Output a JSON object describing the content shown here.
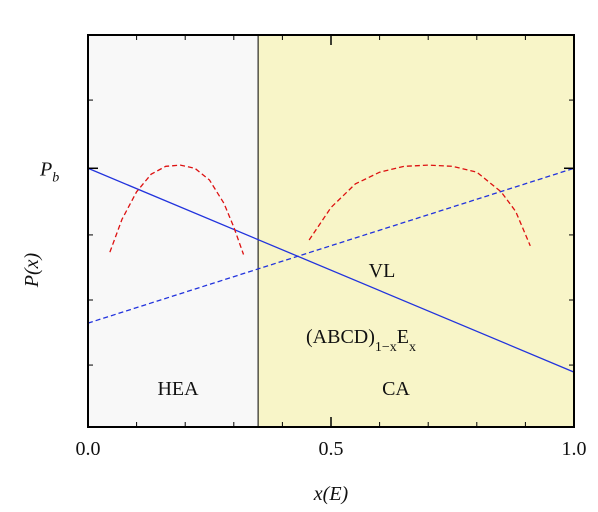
{
  "chart_data": {
    "type": "line",
    "x_label": "x(E)",
    "y_label": "P(x)",
    "xlim": [
      0,
      1
    ],
    "ylim": [
      0,
      1
    ],
    "xticks": [
      {
        "value": 0,
        "label": "0.0"
      },
      {
        "value": 0.5,
        "label": "0.5"
      },
      {
        "value": 1,
        "label": "1.0"
      }
    ],
    "xminorticks": [
      0.1,
      0.2,
      0.3,
      0.4,
      0.6,
      0.7,
      0.8,
      0.9
    ],
    "yticks": [
      {
        "value": 0.66,
        "label": "P",
        "label_sub": "b"
      }
    ],
    "yminorticks": [
      0.158,
      0.324,
      0.49,
      0.834
    ],
    "phase_boundary": 0.35,
    "region_colors": [
      "#f8f8f8",
      "#f8f5c8"
    ],
    "series": [
      {
        "color": "#2233dd",
        "dash": false,
        "x": [
          0,
          1
        ],
        "values": [
          0.66,
          0.14
        ]
      },
      {
        "color": "#2233dd",
        "dash": true,
        "x": [
          0,
          1
        ],
        "values": [
          0.265,
          0.66
        ]
      },
      {
        "color": "#dd1111",
        "dash": true,
        "x": [
          0.045,
          0.07,
          0.1,
          0.13,
          0.16,
          0.19,
          0.22,
          0.25,
          0.28,
          0.3,
          0.32
        ],
        "values": [
          0.446,
          0.53,
          0.6,
          0.645,
          0.665,
          0.668,
          0.66,
          0.63,
          0.57,
          0.51,
          0.44
        ]
      },
      {
        "color": "#dd1111",
        "dash": true,
        "x": [
          0.455,
          0.5,
          0.55,
          0.6,
          0.65,
          0.7,
          0.75,
          0.8,
          0.85,
          0.88,
          0.91
        ],
        "values": [
          0.477,
          0.56,
          0.62,
          0.65,
          0.665,
          0.668,
          0.665,
          0.65,
          0.6,
          0.55,
          0.462
        ]
      }
    ],
    "annotations": {
      "vl": "VL",
      "formula": "(ABCD)",
      "formula_sub1": "1−x",
      "formula_e": "E",
      "formula_sub2": "x",
      "hea": "HEA",
      "ca": "CA"
    }
  }
}
